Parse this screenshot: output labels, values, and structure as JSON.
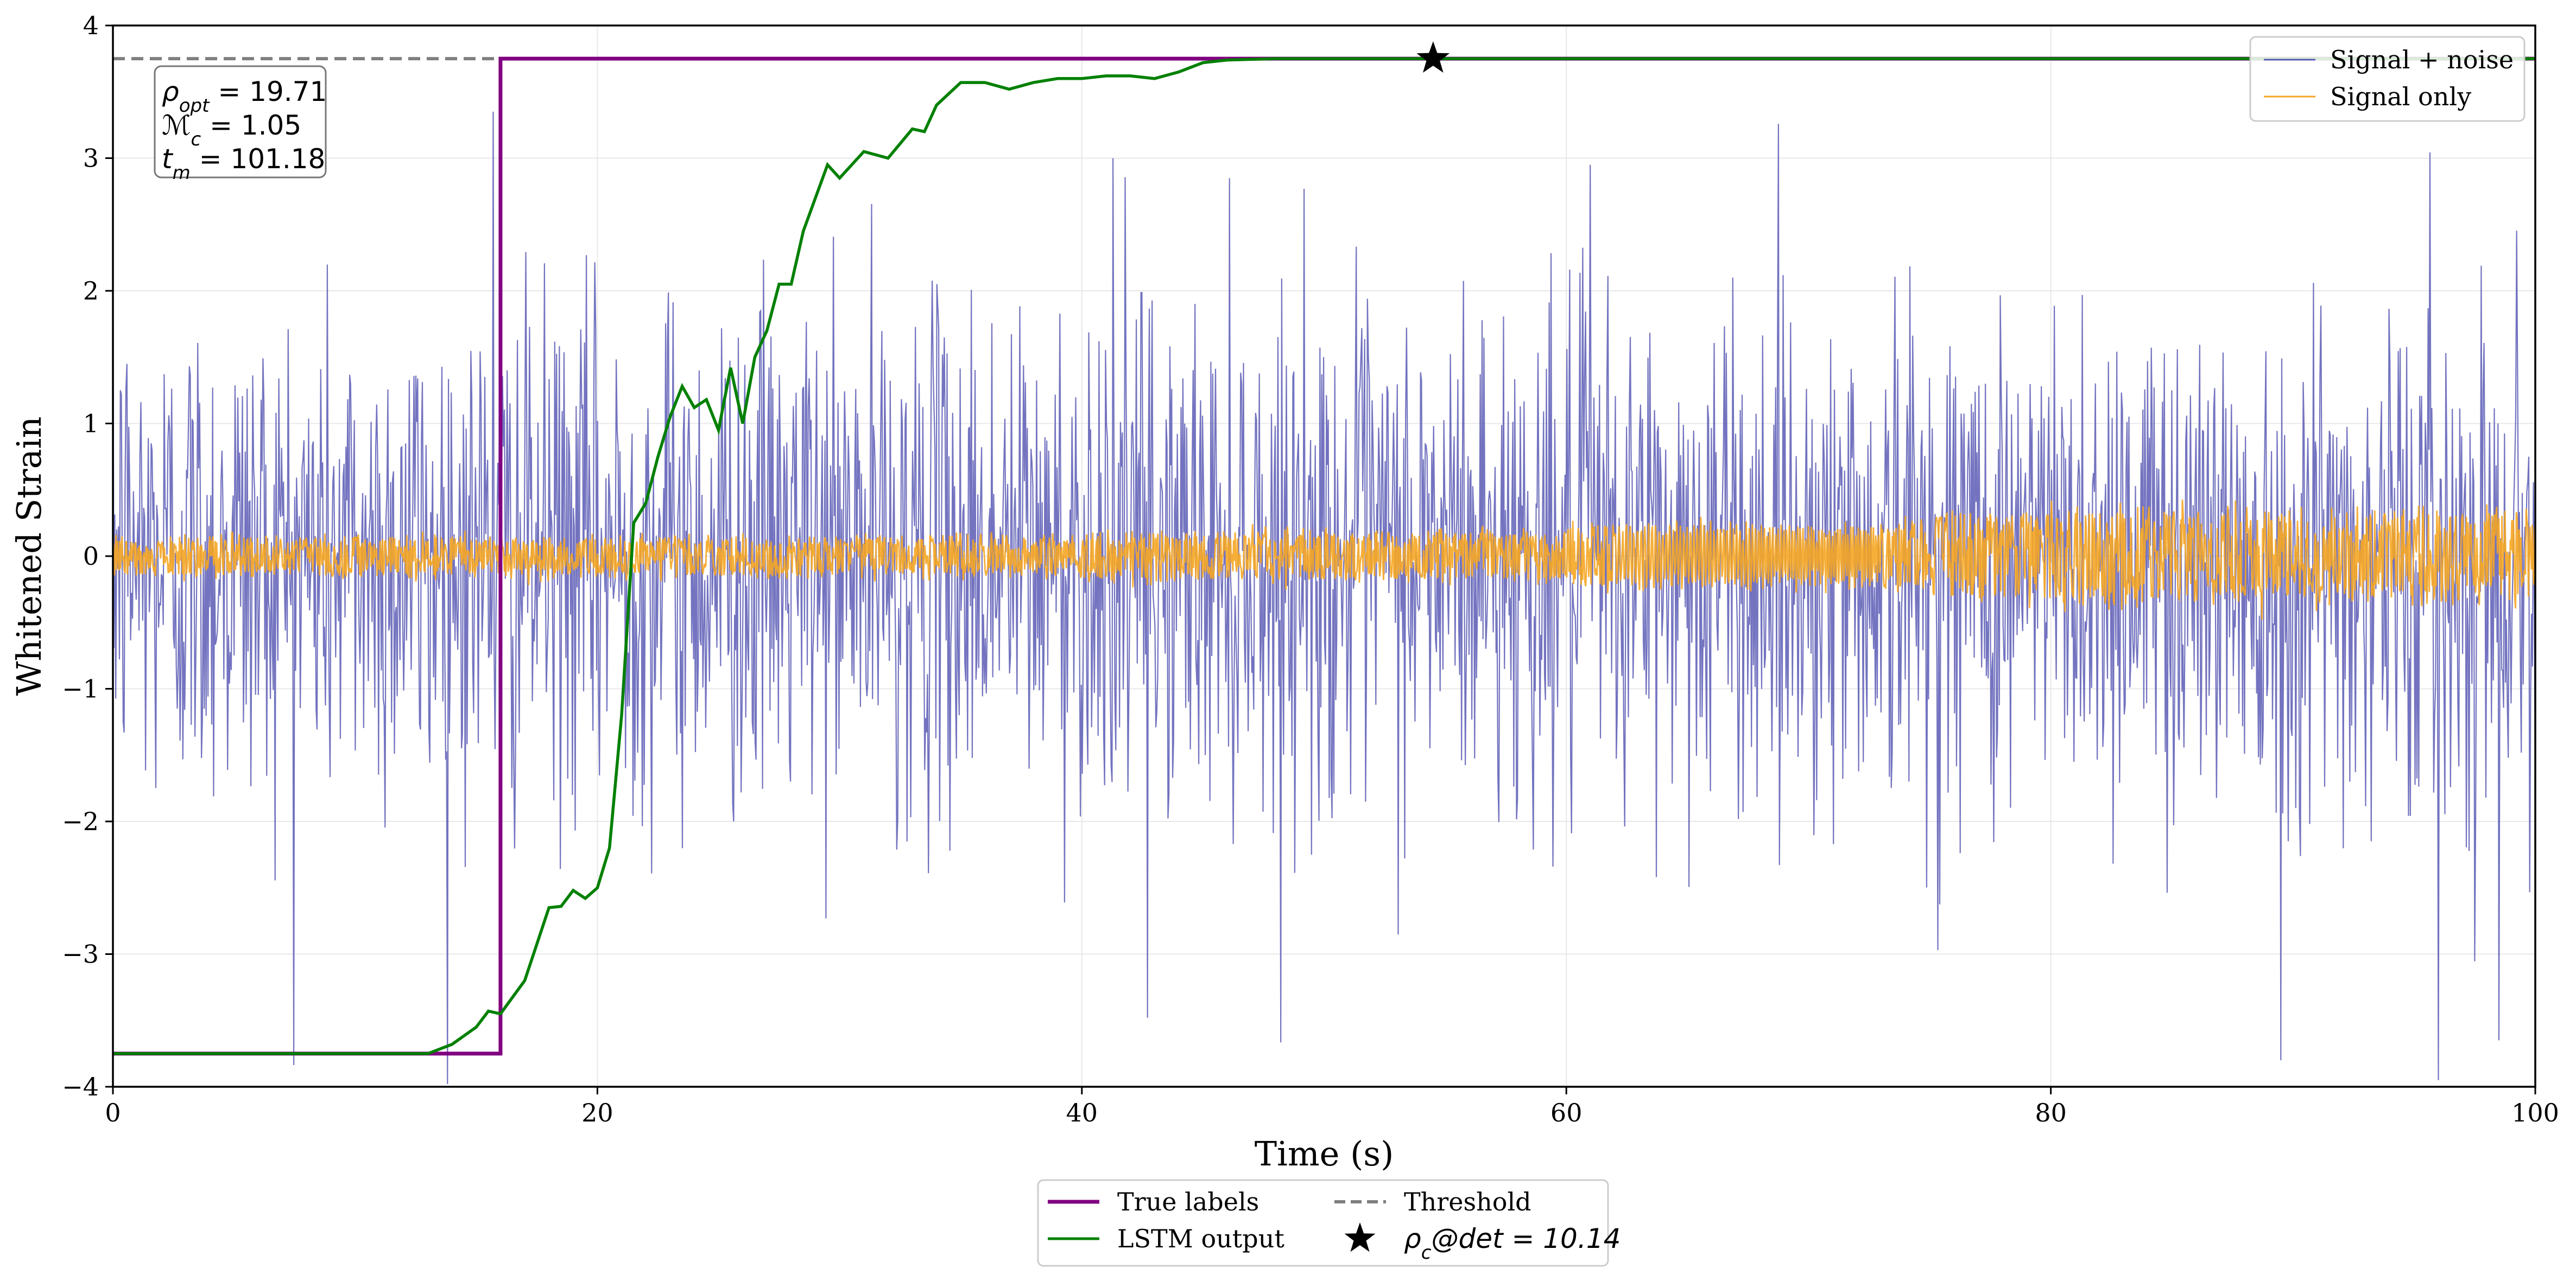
{
  "chart_data": {
    "type": "line",
    "xlabel": "Time (s)",
    "ylabel": "Whitened Strain",
    "xlim": [
      0,
      100
    ],
    "ylim": [
      -4,
      4
    ],
    "x_ticks": [
      0,
      20,
      40,
      60,
      80,
      100
    ],
    "y_ticks": [
      -4,
      -3,
      -2,
      -1,
      0,
      1,
      2,
      3,
      4
    ],
    "grid": true,
    "series": [
      {
        "name": "Signal + noise",
        "color": "#5a5ab5",
        "note": "dense noisy time series, approx. amplitude +/-1 (peaks to about +/-3.5) over 0-100 s",
        "sampled_peaks": [
          {
            "x": 15.7,
            "y": 3.35
          },
          {
            "x": 42.7,
            "y": -3.48
          },
          {
            "x": 41.3,
            "y": 3.0
          },
          {
            "x": 61.0,
            "y": 2.95
          },
          {
            "x": 89.5,
            "y": -3.8
          },
          {
            "x": 96.0,
            "y": -3.95
          },
          {
            "x": 98.5,
            "y": -3.65
          }
        ]
      },
      {
        "name": "Signal only",
        "color": "#f5a623",
        "note": "chirp-like oscillation, amplitude ~0.15 early, ~0.3 late, visible slow cycles near 65-72 s"
      },
      {
        "name": "True labels",
        "color": "#800080",
        "x": [
          0,
          16,
          16,
          100
        ],
        "y": [
          -3.75,
          -3.75,
          3.75,
          3.75
        ]
      },
      {
        "name": "LSTM output",
        "color": "#008000",
        "x": [
          0,
          13,
          14,
          15,
          15.5,
          16,
          17,
          18,
          18.5,
          19,
          19.5,
          20,
          20.5,
          21,
          21.5,
          22,
          22.5,
          23,
          23.5,
          24,
          24.5,
          25,
          25.5,
          26,
          26.5,
          27,
          27.5,
          28,
          28.5,
          29,
          29.5,
          30,
          31,
          32,
          33,
          33.5,
          34,
          35,
          36,
          37,
          38,
          39,
          40,
          41,
          42,
          43,
          44,
          45,
          46,
          48,
          50,
          55,
          60,
          100
        ],
        "y": [
          -3.75,
          -3.75,
          -3.68,
          -3.55,
          -3.43,
          -3.45,
          -3.2,
          -2.65,
          -2.64,
          -2.52,
          -2.58,
          -2.5,
          -2.2,
          -1.2,
          0.25,
          0.4,
          0.75,
          1.05,
          1.28,
          1.12,
          1.18,
          0.95,
          1.42,
          1.0,
          1.5,
          1.7,
          2.05,
          2.05,
          2.45,
          2.7,
          2.95,
          2.85,
          3.05,
          3.0,
          3.22,
          3.2,
          3.4,
          3.57,
          3.57,
          3.52,
          3.57,
          3.6,
          3.6,
          3.62,
          3.62,
          3.6,
          3.65,
          3.72,
          3.74,
          3.75,
          3.75,
          3.75,
          3.75,
          3.75
        ]
      },
      {
        "name": "Threshold",
        "color": "#7f7f7f",
        "y": 3.75,
        "style": "dashed"
      }
    ],
    "detection_marker": {
      "x": 54.5,
      "y": 3.75,
      "label_symbol": "ρ",
      "label_sub": "c",
      "label_rest": "@det = 10.14"
    },
    "annotation_box": {
      "line1": {
        "sym": "ρ",
        "sub": "opt",
        "rest": " = 19.71"
      },
      "line2": {
        "sym": "ℳ",
        "sub": "c",
        "rest": " = 1.05"
      },
      "line3": {
        "sym": "t",
        "sub": "m",
        "rest": " = 101.18"
      }
    },
    "legend_upper": [
      "Signal + noise",
      "Signal only"
    ],
    "legend_lower": [
      "True labels",
      "Threshold",
      "LSTM output"
    ]
  }
}
